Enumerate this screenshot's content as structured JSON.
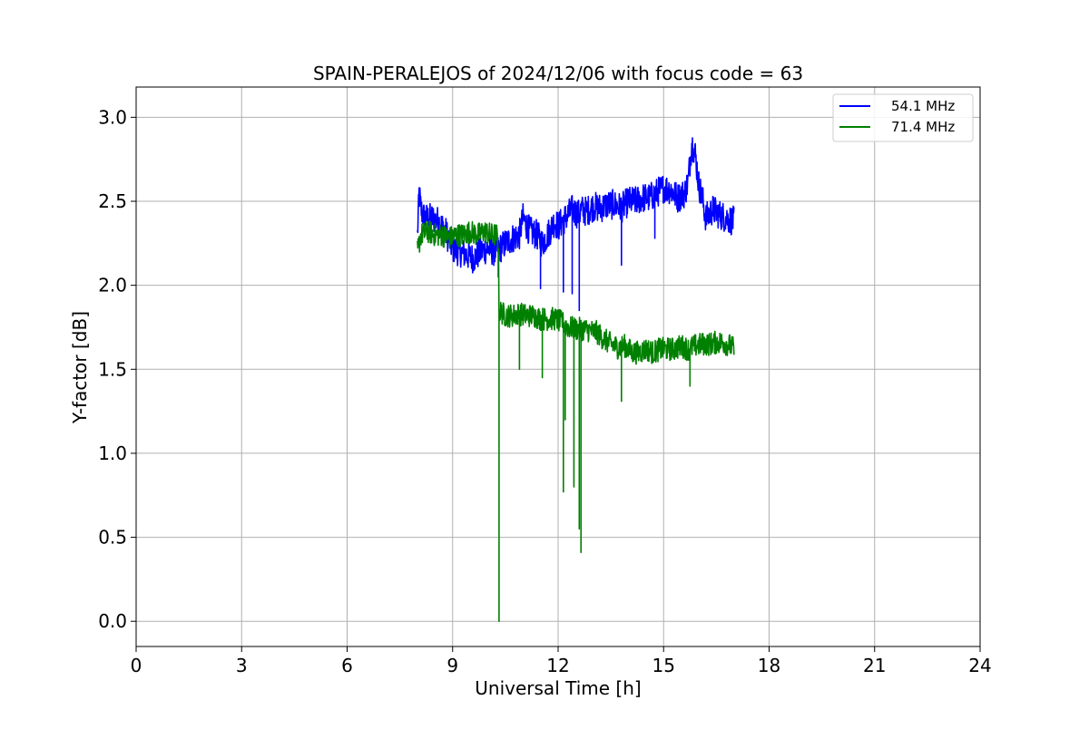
{
  "chart_data": {
    "type": "line",
    "title": "SPAIN-PERALEJOS of 2024/12/06 with focus code = 63",
    "xlabel": "Universal Time [h]",
    "ylabel": "Y-factor [dB]",
    "xlim": [
      0,
      24
    ],
    "ylim": [
      -0.15,
      3.18
    ],
    "xticks": [
      0,
      3,
      6,
      9,
      12,
      15,
      18,
      21,
      24
    ],
    "xtick_labels": [
      "0",
      "3",
      "6",
      "9",
      "12",
      "15",
      "18",
      "21",
      "24"
    ],
    "yticks": [
      0.0,
      0.5,
      1.0,
      1.5,
      2.0,
      2.5,
      3.0
    ],
    "ytick_labels": [
      "0.0",
      "0.5",
      "1.0",
      "1.5",
      "2.0",
      "2.5",
      "3.0"
    ],
    "grid": true,
    "legend_position": "top-right",
    "series": [
      {
        "name": "54.1 MHz",
        "color": "#0000ff",
        "x": [
          8.0,
          8.05,
          8.1,
          8.2,
          8.4,
          8.6,
          8.8,
          9.0,
          9.2,
          9.4,
          9.6,
          9.8,
          10.0,
          10.2,
          10.35,
          10.5,
          10.7,
          10.9,
          11.0,
          11.2,
          11.4,
          11.55,
          11.7,
          11.9,
          12.0,
          12.2,
          12.4,
          12.6,
          12.65,
          12.8,
          13.0,
          13.2,
          13.4,
          13.6,
          13.8,
          14.0,
          14.2,
          14.4,
          14.6,
          14.8,
          15.0,
          15.2,
          15.4,
          15.6,
          15.7,
          15.8,
          15.9,
          16.0,
          16.1,
          16.2,
          16.4,
          16.6,
          16.8,
          17.0
        ],
        "y": [
          2.3,
          2.55,
          2.45,
          2.4,
          2.4,
          2.38,
          2.32,
          2.22,
          2.2,
          2.18,
          2.16,
          2.2,
          2.22,
          2.2,
          2.22,
          2.25,
          2.28,
          2.3,
          2.4,
          2.32,
          2.3,
          2.25,
          2.3,
          2.38,
          2.35,
          2.4,
          2.45,
          2.42,
          2.45,
          2.44,
          2.47,
          2.46,
          2.48,
          2.48,
          2.46,
          2.5,
          2.5,
          2.52,
          2.52,
          2.55,
          2.58,
          2.57,
          2.52,
          2.55,
          2.62,
          2.85,
          2.78,
          2.6,
          2.52,
          2.4,
          2.45,
          2.42,
          2.4,
          2.38
        ]
      },
      {
        "name": "71.4 MHz",
        "color": "#008000",
        "x": [
          8.0,
          8.1,
          8.3,
          8.5,
          8.7,
          8.9,
          9.1,
          9.3,
          9.5,
          9.7,
          9.9,
          10.1,
          10.25,
          10.3,
          10.32,
          10.5,
          10.7,
          10.9,
          11.1,
          11.3,
          11.5,
          11.7,
          11.9,
          12.1,
          12.3,
          12.5,
          12.7,
          12.9,
          13.1,
          13.3,
          13.5,
          13.7,
          13.9,
          14.1,
          14.3,
          14.5,
          14.7,
          14.9,
          15.1,
          15.3,
          15.5,
          15.7,
          15.9,
          16.1,
          16.3,
          16.5,
          16.7,
          16.9,
          17.0
        ],
        "y": [
          2.2,
          2.3,
          2.32,
          2.3,
          2.3,
          2.28,
          2.3,
          2.3,
          2.32,
          2.3,
          2.32,
          2.3,
          2.3,
          2.25,
          1.85,
          1.82,
          1.82,
          1.83,
          1.82,
          1.82,
          1.8,
          1.8,
          1.8,
          1.78,
          1.75,
          1.74,
          1.74,
          1.73,
          1.72,
          1.68,
          1.65,
          1.63,
          1.64,
          1.6,
          1.6,
          1.62,
          1.6,
          1.62,
          1.62,
          1.62,
          1.64,
          1.62,
          1.64,
          1.65,
          1.65,
          1.66,
          1.66,
          1.64,
          1.62
        ]
      }
    ],
    "spikes": [
      {
        "series": 0,
        "x": 10.3,
        "y": 2.05
      },
      {
        "series": 0,
        "x": 11.5,
        "y": 1.98
      },
      {
        "series": 0,
        "x": 12.15,
        "y": 1.96
      },
      {
        "series": 0,
        "x": 12.4,
        "y": 1.95
      },
      {
        "series": 0,
        "x": 12.6,
        "y": 1.85
      },
      {
        "series": 0,
        "x": 13.8,
        "y": 2.12
      },
      {
        "series": 0,
        "x": 14.75,
        "y": 2.28
      },
      {
        "series": 1,
        "x": 10.32,
        "y": 0.0
      },
      {
        "series": 1,
        "x": 10.9,
        "y": 1.5
      },
      {
        "series": 1,
        "x": 11.55,
        "y": 1.45
      },
      {
        "series": 1,
        "x": 12.15,
        "y": 0.77
      },
      {
        "series": 1,
        "x": 12.2,
        "y": 1.2
      },
      {
        "series": 1,
        "x": 12.45,
        "y": 0.8
      },
      {
        "series": 1,
        "x": 12.6,
        "y": 0.55
      },
      {
        "series": 1,
        "x": 12.65,
        "y": 0.41
      },
      {
        "series": 1,
        "x": 13.8,
        "y": 1.31
      },
      {
        "series": 1,
        "x": 15.75,
        "y": 1.4
      }
    ]
  }
}
